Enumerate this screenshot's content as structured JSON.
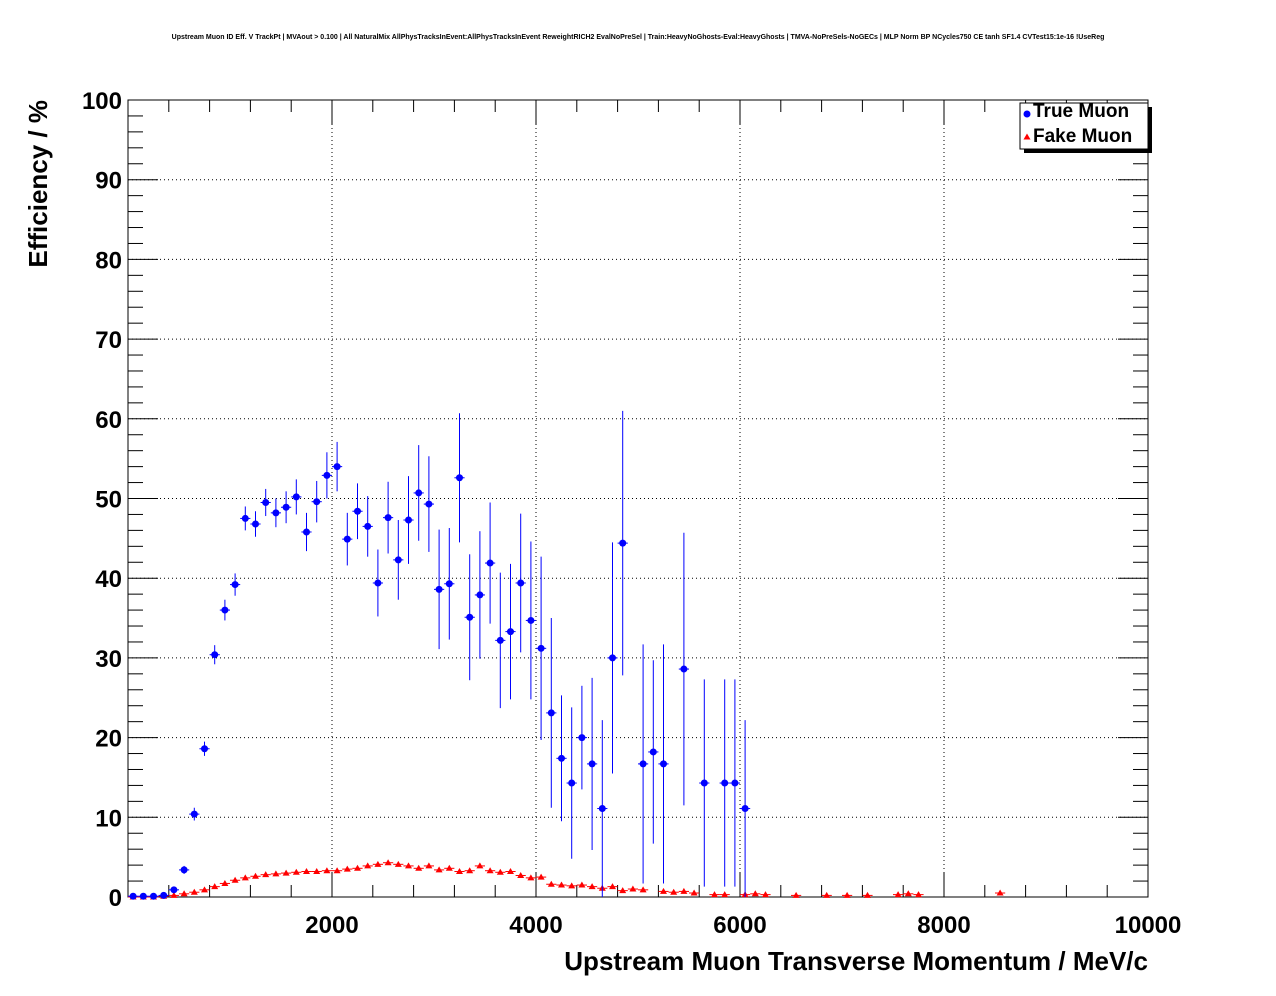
{
  "chart_data": {
    "type": "scatter",
    "title": "Upstream Muon ID Eff. V TrackPt | MVAout > 0.100 | All NaturalMix AllPhysTracksInEvent:AllPhysTracksInEvent ReweightRICH2 EvalNoPreSel | Train:HeavyNoGhosts-Eval:HeavyGhosts | TMVA-NoPreSels-NoGECs | MLP Norm BP NCycles750 CE tanh SF1.4 CVTest15:1e-16 !UseReg",
    "xlabel": "Upstream Muon Transverse Momentum / MeV/c",
    "ylabel": "Efficiency / %",
    "xlim": [
      0,
      10000
    ],
    "ylim": [
      0,
      100
    ],
    "x_ticks": [
      "2000",
      "4000",
      "6000",
      "8000",
      "10000"
    ],
    "y_ticks": [
      "0",
      "10",
      "20",
      "30",
      "40",
      "50",
      "60",
      "70",
      "80",
      "90",
      "100"
    ],
    "grid": true,
    "legend_position": "top-right",
    "series": [
      {
        "name": "True Muon",
        "color": "#0000ff",
        "marker": "circle",
        "points": [
          {
            "x": 50,
            "y": 0.1,
            "err": 0.1
          },
          {
            "x": 150,
            "y": 0.1,
            "err": 0.1
          },
          {
            "x": 250,
            "y": 0.1,
            "err": 0.1
          },
          {
            "x": 350,
            "y": 0.2,
            "err": 0.2
          },
          {
            "x": 450,
            "y": 0.9,
            "err": 0.3
          },
          {
            "x": 550,
            "y": 3.4,
            "err": 0.5
          },
          {
            "x": 650,
            "y": 10.4,
            "err": 0.8
          },
          {
            "x": 750,
            "y": 18.6,
            "err": 0.9
          },
          {
            "x": 850,
            "y": 30.4,
            "err": 1.2
          },
          {
            "x": 950,
            "y": 36.0,
            "err": 1.3
          },
          {
            "x": 1050,
            "y": 39.2,
            "err": 1.4
          },
          {
            "x": 1150,
            "y": 47.5,
            "err": 1.5
          },
          {
            "x": 1250,
            "y": 46.8,
            "err": 1.6
          },
          {
            "x": 1350,
            "y": 49.5,
            "err": 1.7
          },
          {
            "x": 1450,
            "y": 48.2,
            "err": 1.8
          },
          {
            "x": 1550,
            "y": 48.9,
            "err": 2.0
          },
          {
            "x": 1650,
            "y": 50.2,
            "err": 2.2
          },
          {
            "x": 1750,
            "y": 45.8,
            "err": 2.4
          },
          {
            "x": 1850,
            "y": 49.6,
            "err": 2.6
          },
          {
            "x": 1950,
            "y": 52.9,
            "err": 2.9
          },
          {
            "x": 2050,
            "y": 54.0,
            "err": 3.1
          },
          {
            "x": 2150,
            "y": 44.9,
            "err": 3.3
          },
          {
            "x": 2250,
            "y": 48.4,
            "err": 3.5
          },
          {
            "x": 2350,
            "y": 46.5,
            "err": 3.8
          },
          {
            "x": 2450,
            "y": 39.4,
            "err": 4.2
          },
          {
            "x": 2550,
            "y": 47.6,
            "err": 4.5
          },
          {
            "x": 2650,
            "y": 42.3,
            "err": 5.0
          },
          {
            "x": 2750,
            "y": 47.3,
            "err": 5.5
          },
          {
            "x": 2850,
            "y": 50.7,
            "err": 6.0
          },
          {
            "x": 2950,
            "y": 49.3,
            "err": 6.0
          },
          {
            "x": 3050,
            "y": 38.6,
            "err": 7.5
          },
          {
            "x": 3150,
            "y": 39.3,
            "err": 7.0
          },
          {
            "x": 3250,
            "y": 52.6,
            "err": 8.1
          },
          {
            "x": 3350,
            "y": 35.1,
            "err": 7.9
          },
          {
            "x": 3450,
            "y": 37.9,
            "err": 8.0
          },
          {
            "x": 3550,
            "y": 41.9,
            "err": 7.6
          },
          {
            "x": 3650,
            "y": 32.2,
            "err": 8.5
          },
          {
            "x": 3750,
            "y": 33.3,
            "err": 8.5
          },
          {
            "x": 3850,
            "y": 39.4,
            "err": 8.7
          },
          {
            "x": 3950,
            "y": 34.7,
            "err": 9.9
          },
          {
            "x": 4050,
            "y": 31.2,
            "err": 11.5
          },
          {
            "x": 4150,
            "y": 23.1,
            "err": 11.9
          },
          {
            "x": 4250,
            "y": 17.4,
            "err": 7.9
          },
          {
            "x": 4350,
            "y": 14.3,
            "err": 9.5
          },
          {
            "x": 4450,
            "y": 20.0,
            "err": 6.5
          },
          {
            "x": 4550,
            "y": 16.7,
            "err": 10.8
          },
          {
            "x": 4650,
            "y": 11.1,
            "err": 11.1
          },
          {
            "x": 4750,
            "y": 30.0,
            "err": 14.5
          },
          {
            "x": 4850,
            "y": 44.4,
            "err": 16.6
          },
          {
            "x": 5050,
            "y": 16.7,
            "err": 15.0
          },
          {
            "x": 5150,
            "y": 18.2,
            "err": 11.5
          },
          {
            "x": 5250,
            "y": 16.7,
            "err": 15.0
          },
          {
            "x": 5450,
            "y": 28.6,
            "err": 17.1
          },
          {
            "x": 5650,
            "y": 14.3,
            "err": 13.0
          },
          {
            "x": 5850,
            "y": 14.3,
            "err": 13.0
          },
          {
            "x": 5950,
            "y": 14.3,
            "err": 13.0
          },
          {
            "x": 6050,
            "y": 11.1,
            "err": 11.1
          }
        ]
      },
      {
        "name": "Fake Muon",
        "color": "#ff0000",
        "marker": "triangle",
        "points": [
          {
            "x": 50,
            "y": 0.0
          },
          {
            "x": 150,
            "y": 0.0
          },
          {
            "x": 250,
            "y": 0.0
          },
          {
            "x": 350,
            "y": 0.1
          },
          {
            "x": 450,
            "y": 0.2
          },
          {
            "x": 550,
            "y": 0.4
          },
          {
            "x": 650,
            "y": 0.6
          },
          {
            "x": 750,
            "y": 0.9
          },
          {
            "x": 850,
            "y": 1.3
          },
          {
            "x": 950,
            "y": 1.7
          },
          {
            "x": 1050,
            "y": 2.1
          },
          {
            "x": 1150,
            "y": 2.4
          },
          {
            "x": 1250,
            "y": 2.6
          },
          {
            "x": 1350,
            "y": 2.8
          },
          {
            "x": 1450,
            "y": 2.9
          },
          {
            "x": 1550,
            "y": 3.0
          },
          {
            "x": 1650,
            "y": 3.1
          },
          {
            "x": 1750,
            "y": 3.2
          },
          {
            "x": 1850,
            "y": 3.2
          },
          {
            "x": 1950,
            "y": 3.3
          },
          {
            "x": 2050,
            "y": 3.3
          },
          {
            "x": 2150,
            "y": 3.5
          },
          {
            "x": 2250,
            "y": 3.6
          },
          {
            "x": 2350,
            "y": 3.9
          },
          {
            "x": 2450,
            "y": 4.1
          },
          {
            "x": 2550,
            "y": 4.3
          },
          {
            "x": 2650,
            "y": 4.1
          },
          {
            "x": 2750,
            "y": 3.9
          },
          {
            "x": 2850,
            "y": 3.6
          },
          {
            "x": 2950,
            "y": 3.9
          },
          {
            "x": 3050,
            "y": 3.4
          },
          {
            "x": 3150,
            "y": 3.6
          },
          {
            "x": 3250,
            "y": 3.2
          },
          {
            "x": 3350,
            "y": 3.3
          },
          {
            "x": 3450,
            "y": 3.9
          },
          {
            "x": 3550,
            "y": 3.3
          },
          {
            "x": 3650,
            "y": 3.1
          },
          {
            "x": 3750,
            "y": 3.2
          },
          {
            "x": 3850,
            "y": 2.7
          },
          {
            "x": 3950,
            "y": 2.4
          },
          {
            "x": 4050,
            "y": 2.5
          },
          {
            "x": 4150,
            "y": 1.6
          },
          {
            "x": 4250,
            "y": 1.5
          },
          {
            "x": 4350,
            "y": 1.4
          },
          {
            "x": 4450,
            "y": 1.5
          },
          {
            "x": 4550,
            "y": 1.3
          },
          {
            "x": 4650,
            "y": 1.1
          },
          {
            "x": 4750,
            "y": 1.3
          },
          {
            "x": 4850,
            "y": 0.8
          },
          {
            "x": 4950,
            "y": 1.0
          },
          {
            "x": 5050,
            "y": 0.9
          },
          {
            "x": 5250,
            "y": 0.7
          },
          {
            "x": 5350,
            "y": 0.6
          },
          {
            "x": 5450,
            "y": 0.7
          },
          {
            "x": 5550,
            "y": 0.5
          },
          {
            "x": 5750,
            "y": 0.3
          },
          {
            "x": 5850,
            "y": 0.3
          },
          {
            "x": 6050,
            "y": 0.3
          },
          {
            "x": 6150,
            "y": 0.4
          },
          {
            "x": 6250,
            "y": 0.3
          },
          {
            "x": 6550,
            "y": 0.2
          },
          {
            "x": 6850,
            "y": 0.2
          },
          {
            "x": 7050,
            "y": 0.2
          },
          {
            "x": 7250,
            "y": 0.2
          },
          {
            "x": 7550,
            "y": 0.3
          },
          {
            "x": 7650,
            "y": 0.4
          },
          {
            "x": 7750,
            "y": 0.3
          },
          {
            "x": 8550,
            "y": 0.5
          }
        ]
      }
    ]
  }
}
